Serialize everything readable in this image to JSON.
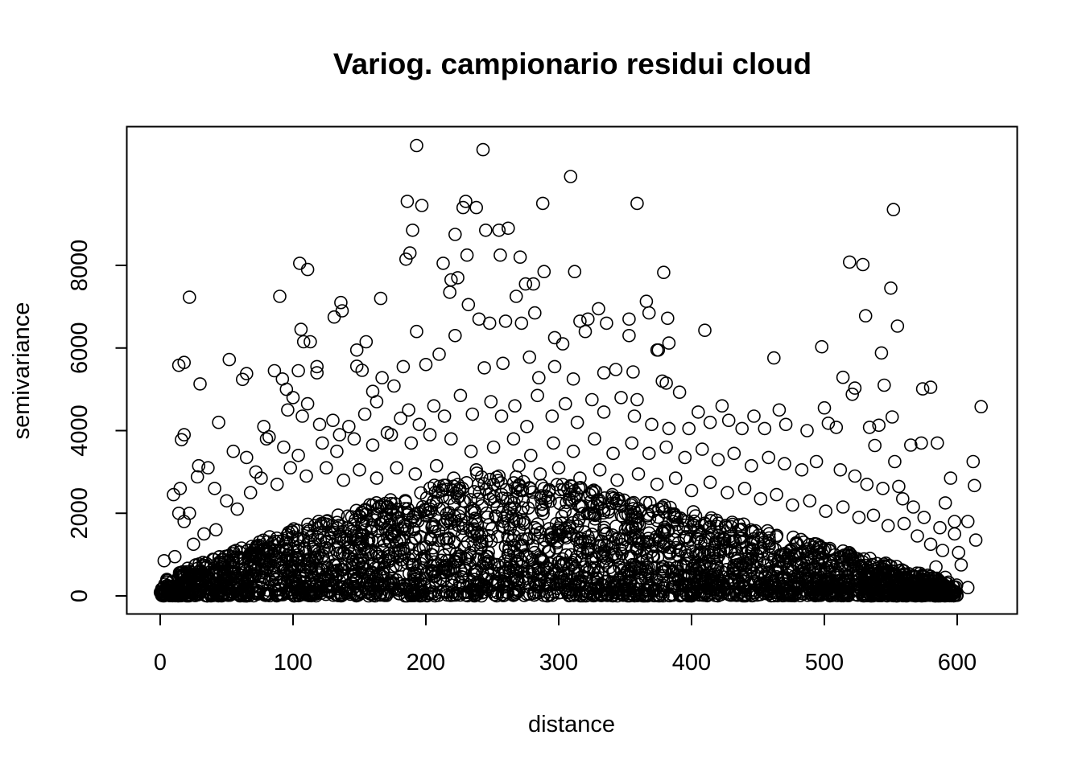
{
  "chart_data": {
    "type": "scatter",
    "title": "Variog. campionario residui cloud",
    "xlabel": "distance",
    "ylabel": "semivariance",
    "xlim": [
      -25,
      645
    ],
    "ylim": [
      -450,
      11300
    ],
    "xticks": [
      0,
      100,
      200,
      300,
      400,
      500,
      600
    ],
    "yticks": [
      0,
      2000,
      4000,
      6000,
      8000
    ],
    "grid": false,
    "legend": "none",
    "marker": "open-circle",
    "point_color": "#000000",
    "points": [
      [
        193,
        10900
      ],
      [
        243,
        10800
      ],
      [
        309,
        10150
      ],
      [
        186,
        9550
      ],
      [
        197,
        9450
      ],
      [
        230,
        9550
      ],
      [
        228,
        9400
      ],
      [
        238,
        9400
      ],
      [
        288,
        9500
      ],
      [
        359,
        9500
      ],
      [
        552,
        9350
      ],
      [
        190,
        8850
      ],
      [
        222,
        8750
      ],
      [
        245,
        8850
      ],
      [
        255,
        8850
      ],
      [
        262,
        8900
      ],
      [
        185,
        8150
      ],
      [
        188,
        8300
      ],
      [
        231,
        8250
      ],
      [
        256,
        8250
      ],
      [
        271,
        8200
      ],
      [
        105,
        8050
      ],
      [
        111,
        7900
      ],
      [
        213,
        8050
      ],
      [
        519,
        8080
      ],
      [
        529,
        8020
      ],
      [
        289,
        7850
      ],
      [
        312,
        7850
      ],
      [
        379,
        7830
      ],
      [
        22,
        7230
      ],
      [
        90,
        7250
      ],
      [
        136,
        7100
      ],
      [
        166,
        7200
      ],
      [
        218,
        7350
      ],
      [
        224,
        7700
      ],
      [
        219,
        7650
      ],
      [
        275,
        7550
      ],
      [
        281,
        7550
      ],
      [
        268,
        7250
      ],
      [
        366,
        7130
      ],
      [
        550,
        7450
      ],
      [
        232,
        7050
      ],
      [
        131,
        6750
      ],
      [
        137,
        6900
      ],
      [
        106,
        6450
      ],
      [
        108,
        6150
      ],
      [
        113,
        6150
      ],
      [
        193,
        6400
      ],
      [
        222,
        6300
      ],
      [
        240,
        6700
      ],
      [
        248,
        6600
      ],
      [
        260,
        6650
      ],
      [
        272,
        6600
      ],
      [
        297,
        6250
      ],
      [
        303,
        6100
      ],
      [
        316,
        6650
      ],
      [
        320,
        6400
      ],
      [
        322,
        6700
      ],
      [
        330,
        6950
      ],
      [
        336,
        6600
      ],
      [
        353,
        6700
      ],
      [
        368,
        6850
      ],
      [
        382,
        6720
      ],
      [
        410,
        6430
      ],
      [
        531,
        6780
      ],
      [
        555,
        6530
      ],
      [
        353,
        6300
      ],
      [
        383,
        6120
      ],
      [
        282,
        6850
      ],
      [
        14,
        5580
      ],
      [
        18,
        5650
      ],
      [
        30,
        5130
      ],
      [
        52,
        5720
      ],
      [
        62,
        5240
      ],
      [
        65,
        5380
      ],
      [
        86,
        5450
      ],
      [
        92,
        5250
      ],
      [
        95,
        5000
      ],
      [
        104,
        5450
      ],
      [
        118,
        5400
      ],
      [
        118,
        5550
      ],
      [
        148,
        5560
      ],
      [
        152,
        5460
      ],
      [
        148,
        5950
      ],
      [
        155,
        6150
      ],
      [
        160,
        4950
      ],
      [
        167,
        5280
      ],
      [
        176,
        5080
      ],
      [
        183,
        5550
      ],
      [
        200,
        5600
      ],
      [
        210,
        5850
      ],
      [
        244,
        5520
      ],
      [
        258,
        5630
      ],
      [
        278,
        5780
      ],
      [
        285,
        5280
      ],
      [
        297,
        5550
      ],
      [
        311,
        5250
      ],
      [
        334,
        5400
      ],
      [
        343,
        5480
      ],
      [
        356,
        5420
      ],
      [
        359,
        4750
      ],
      [
        374,
        5950
      ],
      [
        375,
        5950
      ],
      [
        378,
        5200
      ],
      [
        381,
        5150
      ],
      [
        391,
        4930
      ],
      [
        462,
        5760
      ],
      [
        498,
        6030
      ],
      [
        514,
        5290
      ],
      [
        523,
        5030
      ],
      [
        543,
        5880
      ],
      [
        545,
        5100
      ],
      [
        574,
        5010
      ],
      [
        580,
        5050
      ],
      [
        16,
        3780
      ],
      [
        18,
        3900
      ],
      [
        44,
        4200
      ],
      [
        78,
        4100
      ],
      [
        82,
        3850
      ],
      [
        96,
        4500
      ],
      [
        100,
        4800
      ],
      [
        107,
        4350
      ],
      [
        111,
        4650
      ],
      [
        120,
        4150
      ],
      [
        130,
        4250
      ],
      [
        135,
        3900
      ],
      [
        142,
        4100
      ],
      [
        154,
        4400
      ],
      [
        163,
        4700
      ],
      [
        171,
        3950
      ],
      [
        181,
        4300
      ],
      [
        187,
        4500
      ],
      [
        195,
        4150
      ],
      [
        206,
        4600
      ],
      [
        214,
        4350
      ],
      [
        226,
        4850
      ],
      [
        235,
        4400
      ],
      [
        249,
        4700
      ],
      [
        257,
        4350
      ],
      [
        267,
        4600
      ],
      [
        276,
        4100
      ],
      [
        284,
        4850
      ],
      [
        295,
        4350
      ],
      [
        305,
        4650
      ],
      [
        314,
        4200
      ],
      [
        325,
        4750
      ],
      [
        334,
        4450
      ],
      [
        347,
        4800
      ],
      [
        357,
        4350
      ],
      [
        370,
        4150
      ],
      [
        383,
        4050
      ],
      [
        398,
        4050
      ],
      [
        405,
        4450
      ],
      [
        414,
        4200
      ],
      [
        423,
        4600
      ],
      [
        428,
        4250
      ],
      [
        438,
        4050
      ],
      [
        447,
        4350
      ],
      [
        455,
        4050
      ],
      [
        466,
        4500
      ],
      [
        471,
        4150
      ],
      [
        487,
        4000
      ],
      [
        500,
        4550
      ],
      [
        503,
        4180
      ],
      [
        509,
        4080
      ],
      [
        521,
        4880
      ],
      [
        534,
        4080
      ],
      [
        541,
        4130
      ],
      [
        551,
        4330
      ],
      [
        538,
        3640
      ],
      [
        553,
        3250
      ],
      [
        565,
        3650
      ],
      [
        573,
        3700
      ],
      [
        585,
        3700
      ],
      [
        618,
        4580
      ],
      [
        612,
        3250
      ],
      [
        595,
        2850
      ],
      [
        613,
        2670
      ],
      [
        10,
        2450
      ],
      [
        15,
        2600
      ],
      [
        14,
        2000
      ],
      [
        22,
        2000
      ],
      [
        28,
        2880
      ],
      [
        29,
        3150
      ],
      [
        36,
        3100
      ],
      [
        41,
        2600
      ],
      [
        55,
        3500
      ],
      [
        65,
        3350
      ],
      [
        72,
        3000
      ],
      [
        80,
        3800
      ],
      [
        93,
        3600
      ],
      [
        104,
        3400
      ],
      [
        122,
        3700
      ],
      [
        133,
        3500
      ],
      [
        146,
        3800
      ],
      [
        160,
        3650
      ],
      [
        174,
        3900
      ],
      [
        189,
        3700
      ],
      [
        203,
        3900
      ],
      [
        219,
        3800
      ],
      [
        234,
        3500
      ],
      [
        251,
        3600
      ],
      [
        266,
        3800
      ],
      [
        279,
        3400
      ],
      [
        296,
        3700
      ],
      [
        311,
        3500
      ],
      [
        327,
        3800
      ],
      [
        341,
        3450
      ],
      [
        355,
        3700
      ],
      [
        368,
        3450
      ],
      [
        381,
        3600
      ],
      [
        395,
        3350
      ],
      [
        408,
        3550
      ],
      [
        420,
        3300
      ],
      [
        432,
        3450
      ],
      [
        445,
        3150
      ],
      [
        458,
        3350
      ],
      [
        470,
        3200
      ],
      [
        483,
        3050
      ],
      [
        494,
        3250
      ],
      [
        512,
        3050
      ],
      [
        523,
        2900
      ],
      [
        532,
        2700
      ],
      [
        544,
        2600
      ],
      [
        556,
        2650
      ],
      [
        559,
        2350
      ],
      [
        567,
        2150
      ],
      [
        575,
        1900
      ],
      [
        587,
        1650
      ],
      [
        591,
        2250
      ],
      [
        598,
        1800
      ],
      [
        608,
        1800
      ],
      [
        598,
        1500
      ],
      [
        601,
        1050
      ],
      [
        614,
        1350
      ],
      [
        603,
        750
      ],
      [
        608,
        200
      ],
      [
        596,
        150
      ],
      [
        587,
        350
      ],
      [
        578,
        500
      ],
      [
        570,
        50
      ],
      [
        1,
        50
      ],
      [
        3,
        850
      ],
      [
        5,
        400
      ],
      [
        8,
        150
      ],
      [
        11,
        950
      ],
      [
        18,
        1800
      ],
      [
        25,
        1250
      ],
      [
        33,
        1500
      ],
      [
        42,
        1600
      ],
      [
        50,
        2300
      ],
      [
        58,
        2100
      ],
      [
        68,
        2500
      ],
      [
        76,
        2850
      ],
      [
        88,
        2700
      ],
      [
        98,
        3100
      ],
      [
        110,
        2900
      ],
      [
        125,
        3100
      ],
      [
        138,
        2800
      ],
      [
        150,
        3050
      ],
      [
        163,
        2850
      ],
      [
        178,
        3100
      ],
      [
        192,
        2950
      ],
      [
        208,
        3150
      ],
      [
        221,
        2850
      ],
      [
        238,
        3050
      ],
      [
        255,
        2900
      ],
      [
        270,
        3150
      ],
      [
        286,
        2950
      ],
      [
        300,
        3100
      ],
      [
        316,
        2850
      ],
      [
        331,
        3050
      ],
      [
        344,
        2800
      ],
      [
        360,
        2950
      ],
      [
        374,
        2700
      ],
      [
        388,
        2850
      ],
      [
        400,
        2550
      ],
      [
        414,
        2750
      ],
      [
        427,
        2500
      ],
      [
        440,
        2600
      ],
      [
        452,
        2350
      ],
      [
        464,
        2450
      ],
      [
        476,
        2200
      ],
      [
        489,
        2300
      ],
      [
        501,
        2050
      ],
      [
        514,
        2150
      ],
      [
        526,
        1900
      ],
      [
        537,
        1950
      ],
      [
        548,
        1700
      ],
      [
        560,
        1750
      ],
      [
        570,
        1450
      ],
      [
        580,
        1250
      ],
      [
        589,
        1100
      ],
      [
        584,
        700
      ],
      [
        591,
        450
      ],
      [
        560,
        600
      ],
      [
        548,
        400
      ],
      [
        538,
        250
      ],
      [
        528,
        150
      ],
      [
        515,
        350
      ],
      [
        505,
        100
      ]
    ],
    "dense_band": {
      "description_free_shape": true,
      "x_range": [
        0,
        600
      ],
      "peak_x": 240,
      "peak_y": 2600
    }
  }
}
